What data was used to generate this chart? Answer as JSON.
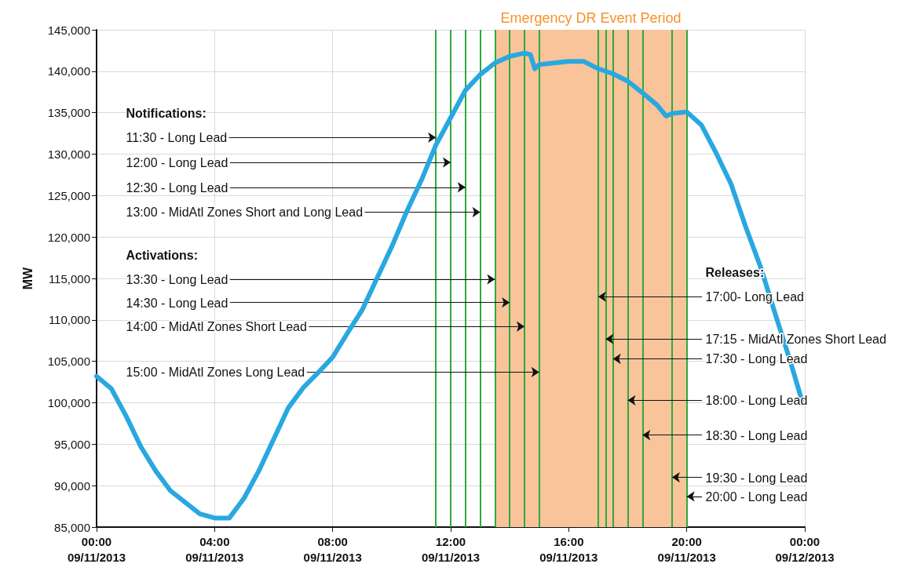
{
  "chart_data": {
    "type": "line",
    "ylabel": "MW",
    "x": [
      "2013-09-11T00:00",
      "2013-09-11T00:30",
      "2013-09-11T01:00",
      "2013-09-11T01:30",
      "2013-09-11T02:00",
      "2013-09-11T02:30",
      "2013-09-11T03:00",
      "2013-09-11T03:30",
      "2013-09-11T04:00",
      "2013-09-11T04:30",
      "2013-09-11T05:00",
      "2013-09-11T05:30",
      "2013-09-11T06:00",
      "2013-09-11T06:30",
      "2013-09-11T07:00",
      "2013-09-11T07:30",
      "2013-09-11T08:00",
      "2013-09-11T08:30",
      "2013-09-11T09:00",
      "2013-09-11T09:30",
      "2013-09-11T10:00",
      "2013-09-11T10:30",
      "2013-09-11T11:00",
      "2013-09-11T11:30",
      "2013-09-11T12:00",
      "2013-09-11T12:30",
      "2013-09-11T13:00",
      "2013-09-11T13:30",
      "2013-09-11T14:00",
      "2013-09-11T14:30",
      "2013-09-11T14:42",
      "2013-09-11T14:51",
      "2013-09-11T15:00",
      "2013-09-11T15:30",
      "2013-09-11T16:00",
      "2013-09-11T16:30",
      "2013-09-11T17:00",
      "2013-09-11T17:30",
      "2013-09-11T18:00",
      "2013-09-11T18:30",
      "2013-09-11T19:00",
      "2013-09-11T19:18",
      "2013-09-11T19:30",
      "2013-09-11T20:00",
      "2013-09-11T20:30",
      "2013-09-11T21:00",
      "2013-09-11T21:30",
      "2013-09-11T22:00",
      "2013-09-11T22:30",
      "2013-09-11T23:00",
      "2013-09-11T23:30",
      "2013-09-11T23:54"
    ],
    "series": [
      {
        "color": "#29a8e0",
        "values": [
          103200,
          101700,
          98400,
          94700,
          91800,
          89400,
          88000,
          86600,
          86100,
          86100,
          88500,
          91800,
          95600,
          99400,
          101800,
          103600,
          105500,
          108400,
          111200,
          115000,
          118800,
          123000,
          126800,
          131100,
          134400,
          137700,
          139600,
          141000,
          141800,
          142200,
          142000,
          140300,
          140800,
          141000,
          141200,
          141200,
          140300,
          139700,
          138800,
          137400,
          135900,
          134600,
          134900,
          135100,
          133500,
          130100,
          126400,
          121200,
          116400,
          110700,
          105100,
          100300
        ]
      }
    ],
    "xlim": [
      "2013-09-11T00:00",
      "2013-09-12T00:00"
    ],
    "xticks": [
      {
        "value": "2013-09-11T00:00",
        "label": "00:00\n09/11/2013"
      },
      {
        "value": "2013-09-11T04:00",
        "label": "04:00\n09/11/2013"
      },
      {
        "value": "2013-09-11T08:00",
        "label": "08:00\n09/11/2013"
      },
      {
        "value": "2013-09-11T12:00",
        "label": "12:00\n09/11/2013"
      },
      {
        "value": "2013-09-11T16:00",
        "label": "16:00\n09/11/2013"
      },
      {
        "value": "2013-09-11T20:00",
        "label": "20:00\n09/11/2013"
      },
      {
        "value": "2013-09-12T00:00",
        "label": "00:00\n09/12/2013"
      }
    ],
    "ylim": [
      85000,
      145000
    ],
    "yticks": [
      {
        "value": 85000,
        "label": "85,000"
      },
      {
        "value": 90000,
        "label": "90,000"
      },
      {
        "value": 95000,
        "label": "95,000"
      },
      {
        "value": 100000,
        "label": "100,000"
      },
      {
        "value": 105000,
        "label": "105,000"
      },
      {
        "value": 110000,
        "label": "110,000"
      },
      {
        "value": 115000,
        "label": "115,000"
      },
      {
        "value": 120000,
        "label": "120,000"
      },
      {
        "value": 125000,
        "label": "125,000"
      },
      {
        "value": 130000,
        "label": "130,000"
      },
      {
        "value": 135000,
        "label": "135,000"
      },
      {
        "value": 140000,
        "label": "140,000"
      },
      {
        "value": 145000,
        "label": "145,000"
      }
    ],
    "grid": true,
    "marker": "none",
    "line_style": "solid",
    "bands": [
      {
        "axis": "x",
        "from": "2013-09-11T13:30",
        "to": "2013-09-11T20:00",
        "label": "Emergency DR Event Period",
        "color": "#f9c49a"
      }
    ],
    "ref_lines": [
      {
        "axis": "x",
        "value": "2013-09-11T11:30",
        "color": "#2eaa3c"
      },
      {
        "axis": "x",
        "value": "2013-09-11T12:00",
        "color": "#2eaa3c"
      },
      {
        "axis": "x",
        "value": "2013-09-11T12:30",
        "color": "#2eaa3c"
      },
      {
        "axis": "x",
        "value": "2013-09-11T13:00",
        "color": "#2eaa3c"
      },
      {
        "axis": "x",
        "value": "2013-09-11T13:30",
        "color": "#2eaa3c"
      },
      {
        "axis": "x",
        "value": "2013-09-11T14:00",
        "color": "#2eaa3c"
      },
      {
        "axis": "x",
        "value": "2013-09-11T14:30",
        "color": "#2eaa3c"
      },
      {
        "axis": "x",
        "value": "2013-09-11T15:00",
        "color": "#2eaa3c"
      },
      {
        "axis": "x",
        "value": "2013-09-11T17:00",
        "color": "#2eaa3c"
      },
      {
        "axis": "x",
        "value": "2013-09-11T17:15",
        "color": "#2eaa3c"
      },
      {
        "axis": "x",
        "value": "2013-09-11T17:30",
        "color": "#2eaa3c"
      },
      {
        "axis": "x",
        "value": "2013-09-11T18:00",
        "color": "#2eaa3c"
      },
      {
        "axis": "x",
        "value": "2013-09-11T18:30",
        "color": "#2eaa3c"
      },
      {
        "axis": "x",
        "value": "2013-09-11T19:30",
        "color": "#2eaa3c"
      },
      {
        "axis": "x",
        "value": "2013-09-11T20:00",
        "color": "#2eaa3c"
      }
    ],
    "annotations": [
      "Notifications:",
      {
        "text": "11:30 - Long Lead",
        "x": "2013-09-11T11:30",
        "y": 132000
      },
      {
        "text": "12:00 - Long Lead",
        "x": "2013-09-11T12:00",
        "y": 129000
      },
      {
        "text": "12:30 - Long Lead",
        "x": "2013-09-11T12:30",
        "y": 126000
      },
      {
        "text": "13:00 - MidAtl Zones Short and Long Lead",
        "x": "2013-09-11T13:00",
        "y": 123000
      },
      "Activations:",
      {
        "text": "13:30 - Long Lead",
        "x": "2013-09-11T13:30",
        "y": 114900
      },
      {
        "text": "14:30 - Long Lead",
        "x": "2013-09-11T14:00",
        "y": 112100
      },
      {
        "text": "14:00 - MidAtl Zones Short Lead",
        "x": "2013-09-11T14:30",
        "y": 109200
      },
      {
        "text": "15:00 - MidAtl Zones Long Lead",
        "x": "2013-09-11T15:00",
        "y": 103700
      },
      "Releases:",
      {
        "text": "17:00- Long Lead",
        "x": "2013-09-11T17:00",
        "y": 112800
      },
      {
        "text": "17:15 - MidAtl Zones Short Lead",
        "x": "2013-09-11T17:15",
        "y": 107700
      },
      {
        "text": "17:30 - Long Lead",
        "x": "2013-09-11T17:30",
        "y": 105300
      },
      {
        "text": "18:00 - Long Lead",
        "x": "2013-09-11T18:00",
        "y": 100300
      },
      {
        "text": "18:30 - Long Lead",
        "x": "2013-09-11T18:30",
        "y": 96100
      },
      {
        "text": "19:30 - Long Lead",
        "x": "2013-09-11T19:30",
        "y": 91000
      },
      {
        "text": "20:00 - Long Lead",
        "x": "2013-09-11T20:00",
        "y": 88700
      }
    ]
  }
}
